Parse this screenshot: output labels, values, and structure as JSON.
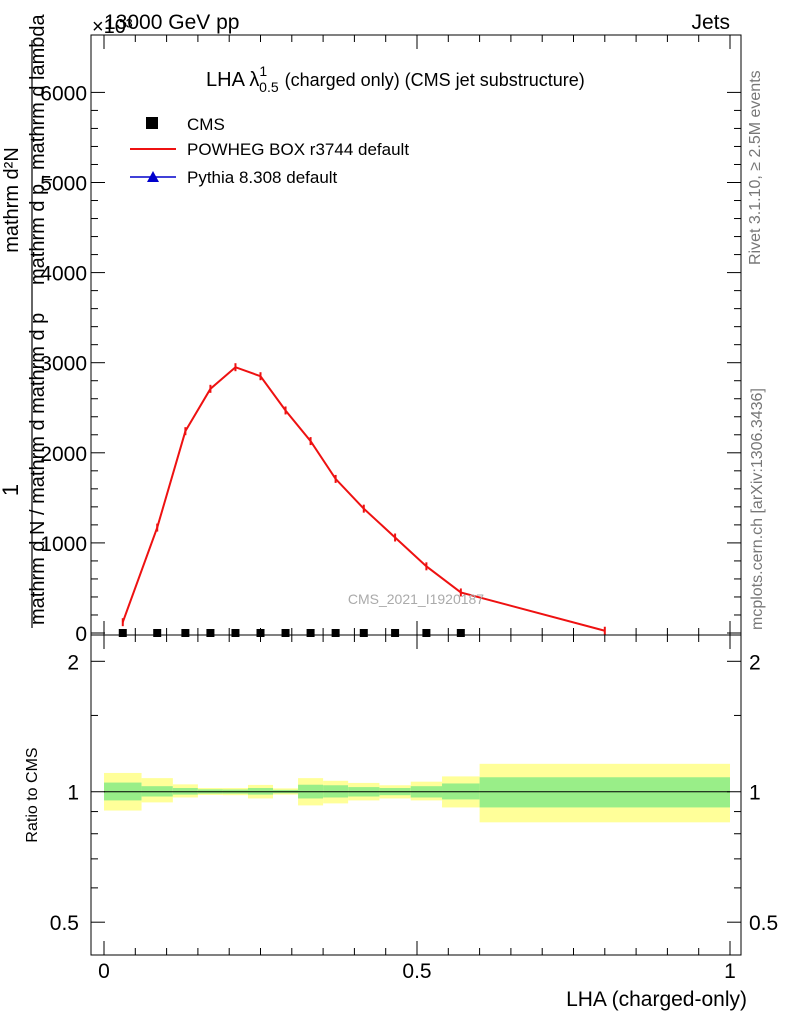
{
  "header": {
    "left_label": "13000 GeV pp",
    "right_label": "Jets",
    "exponent_label": "×10³"
  },
  "side_labels": {
    "rivet": "Rivet 3.1.10, ≥ 2.5M events",
    "mcplots": "mcplots.cern.ch [arXiv:1306.3436]"
  },
  "watermark": "CMS_2021_I1920187",
  "chart_data": [
    {
      "type": "line",
      "title_main": "LHA λ",
      "title_sup": "1",
      "title_sub": "0.5",
      "title_rest": "(charged only) (CMS jet substructure)",
      "ylabel_numerator": "1",
      "ylabel_denominator": "mathrm d N / mathrm d mathrm d p",
      "ylabel_numerator2": "mathrm d²N",
      "ylabel_denominator2": "mathrm d p",
      "ylabel_sub": "T",
      "ylabel_tail": "mathrm d lambda",
      "ylim": [
        0,
        6600
      ],
      "xlim": [
        0,
        1
      ],
      "yticks": [
        0,
        1000,
        2000,
        3000,
        4000,
        5000,
        6000
      ],
      "ytick_labels": [
        "0",
        "1000",
        "2000",
        "3000",
        "4000",
        "5000",
        "6000"
      ],
      "legend": {
        "placement": "top-left",
        "entries": [
          {
            "label": "CMS",
            "color": "#000000",
            "marker": "square"
          },
          {
            "label": "POWHEG BOX r3744 default",
            "color": "#ee1111",
            "marker": "line"
          },
          {
            "label": "Pythia 8.308 default",
            "color": "#0000cc",
            "marker": "triangle"
          }
        ]
      },
      "series": [
        {
          "name": "CMS",
          "color": "#000000",
          "x": [
            0.03,
            0.085,
            0.13,
            0.17,
            0.21,
            0.25,
            0.29,
            0.33,
            0.37,
            0.415,
            0.465,
            0.515,
            0.57
          ],
          "values": [
            0,
            0,
            0,
            0,
            0,
            0,
            0,
            0,
            0,
            0,
            0,
            0,
            0
          ]
        },
        {
          "name": "POWHEG BOX r3744 default",
          "color": "#ee1111",
          "x": [
            0.03,
            0.085,
            0.13,
            0.17,
            0.21,
            0.25,
            0.29,
            0.33,
            0.37,
            0.415,
            0.465,
            0.515,
            0.57,
            0.8
          ],
          "values": [
            120,
            1170,
            2240,
            2710,
            2950,
            2850,
            2470,
            2130,
            1710,
            1380,
            1060,
            740,
            450,
            25
          ]
        }
      ]
    },
    {
      "type": "area",
      "ylabel": "Ratio to CMS",
      "ylim": [
        0.42,
        2.3
      ],
      "log_y": true,
      "xlim": [
        0,
        1
      ],
      "xlabel": "LHA (charged-only)",
      "yticks": [
        0.5,
        1,
        2
      ],
      "ytick_labels": [
        "0.5",
        "1",
        "2"
      ],
      "xticks": [
        0,
        0.5,
        1
      ],
      "xtick_labels": [
        "0",
        "0.5",
        "1"
      ],
      "bands": [
        {
          "x0": 0.0,
          "x1": 0.06,
          "stat_lo": 0.955,
          "stat_hi": 1.05,
          "tot_lo": 0.905,
          "tot_hi": 1.105
        },
        {
          "x0": 0.06,
          "x1": 0.11,
          "stat_lo": 0.975,
          "stat_hi": 1.03,
          "tot_lo": 0.945,
          "tot_hi": 1.075
        },
        {
          "x0": 0.11,
          "x1": 0.15,
          "stat_lo": 0.985,
          "stat_hi": 1.02,
          "tot_lo": 0.97,
          "tot_hi": 1.04
        },
        {
          "x0": 0.15,
          "x1": 0.19,
          "stat_lo": 0.99,
          "stat_hi": 1.013,
          "tot_lo": 0.983,
          "tot_hi": 1.02
        },
        {
          "x0": 0.19,
          "x1": 0.23,
          "stat_lo": 0.99,
          "stat_hi": 1.012,
          "tot_lo": 0.982,
          "tot_hi": 1.02
        },
        {
          "x0": 0.23,
          "x1": 0.27,
          "stat_lo": 0.985,
          "stat_hi": 1.02,
          "tot_lo": 0.965,
          "tot_hi": 1.037
        },
        {
          "x0": 0.27,
          "x1": 0.31,
          "stat_lo": 0.992,
          "stat_hi": 1.01,
          "tot_lo": 0.985,
          "tot_hi": 1.018
        },
        {
          "x0": 0.31,
          "x1": 0.35,
          "stat_lo": 0.965,
          "stat_hi": 1.038,
          "tot_lo": 0.93,
          "tot_hi": 1.075
        },
        {
          "x0": 0.35,
          "x1": 0.39,
          "stat_lo": 0.97,
          "stat_hi": 1.035,
          "tot_lo": 0.94,
          "tot_hi": 1.06
        },
        {
          "x0": 0.39,
          "x1": 0.44,
          "stat_lo": 0.975,
          "stat_hi": 1.025,
          "tot_lo": 0.955,
          "tot_hi": 1.048
        },
        {
          "x0": 0.44,
          "x1": 0.49,
          "stat_lo": 0.982,
          "stat_hi": 1.02,
          "tot_lo": 0.965,
          "tot_hi": 1.035
        },
        {
          "x0": 0.49,
          "x1": 0.54,
          "stat_lo": 0.97,
          "stat_hi": 1.03,
          "tot_lo": 0.955,
          "tot_hi": 1.055
        },
        {
          "x0": 0.54,
          "x1": 0.6,
          "stat_lo": 0.96,
          "stat_hi": 1.045,
          "tot_lo": 0.92,
          "tot_hi": 1.085
        },
        {
          "x0": 0.6,
          "x1": 1.0,
          "stat_lo": 0.92,
          "stat_hi": 1.08,
          "tot_lo": 0.85,
          "tot_hi": 1.16
        }
      ],
      "reference_line": 1,
      "colors": {
        "stat": "#99ee88",
        "total": "#ffff99",
        "line": "#000000"
      }
    }
  ]
}
